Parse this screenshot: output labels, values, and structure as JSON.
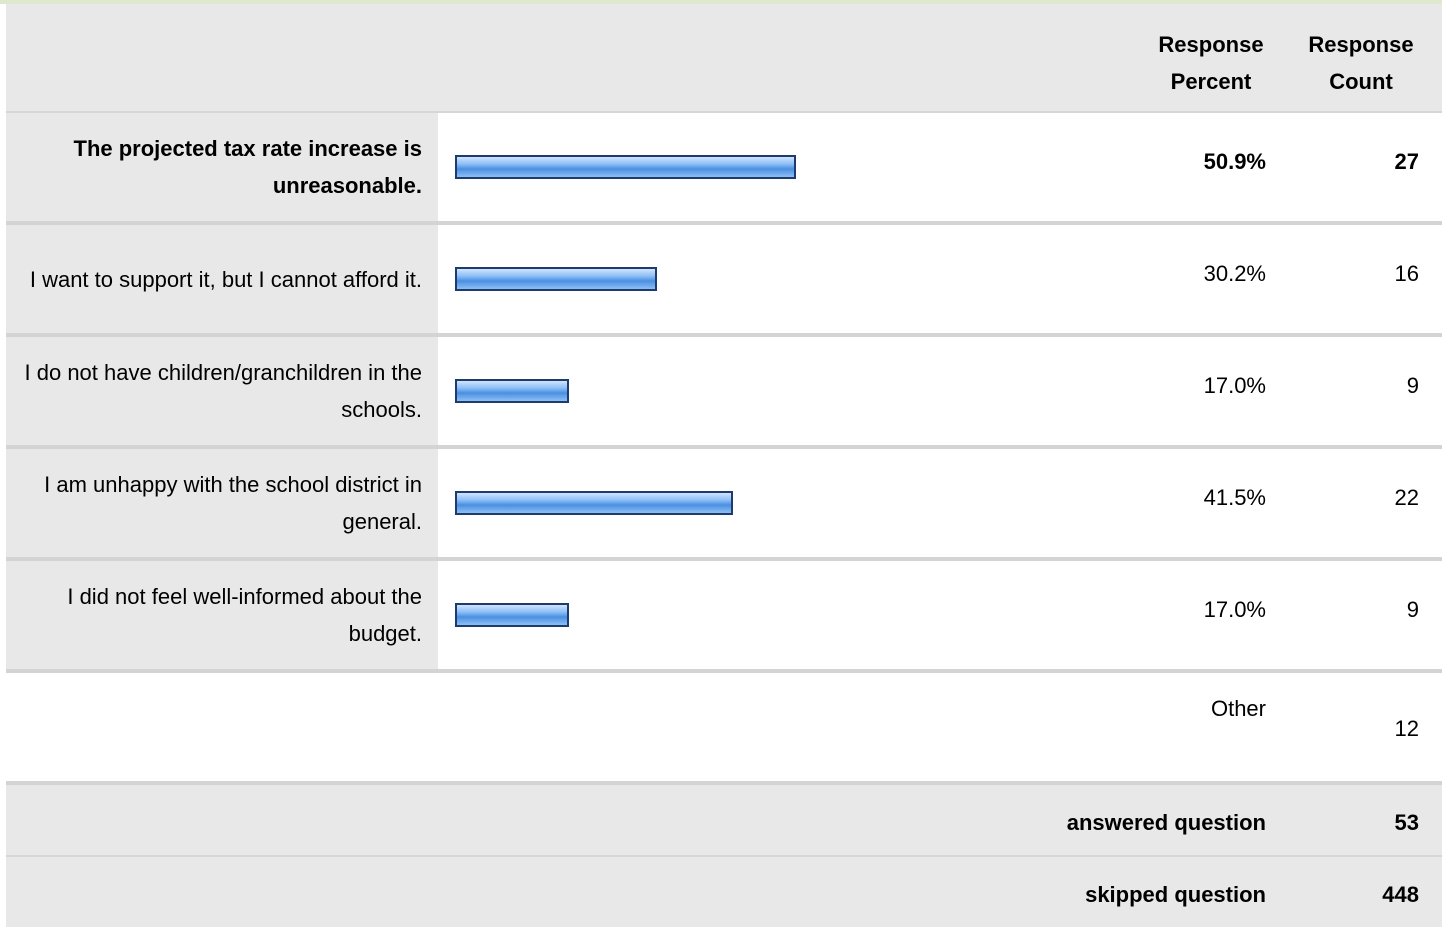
{
  "header": {
    "percent_label": "Response Percent",
    "count_label": "Response Count"
  },
  "chart_data": {
    "type": "bar",
    "categories": [
      "The projected tax rate increase is unreasonable.",
      "I want to support it, but I cannot afford it.",
      "I do not have children/granchildren in the schools.",
      "I am unhappy with the school district in general.",
      "I did not feel well-informed about the budget."
    ],
    "values": [
      50.9,
      30.2,
      17.0,
      41.5,
      17.0
    ],
    "percent_labels": [
      "50.9%",
      "30.2%",
      "17.0%",
      "41.5%",
      "17.0%"
    ],
    "counts": [
      "27",
      "16",
      "9",
      "22",
      "9"
    ],
    "xlim": [
      0,
      100
    ],
    "bar_color": "#4a90e2"
  },
  "other": {
    "label": "Other",
    "count": "12"
  },
  "footer": {
    "answered_label": "answered question",
    "answered_value": "53",
    "skipped_label": "skipped question",
    "skipped_value": "448"
  }
}
